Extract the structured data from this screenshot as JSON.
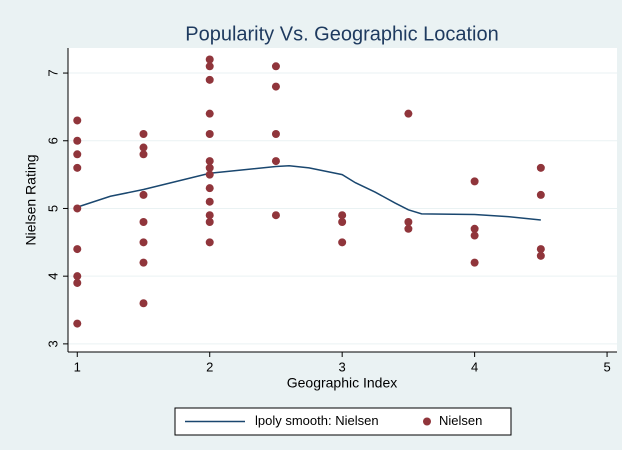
{
  "chart_data": {
    "type": "scatter",
    "title": "Popularity Vs. Geographic Location",
    "x_label": "Geographic Index",
    "y_label": "Nielsen Rating",
    "xlim": [
      0.93,
      5.075
    ],
    "xticks": [
      1,
      2,
      3,
      4,
      5
    ],
    "ylim": [
      2.88,
      7.37
    ],
    "yticks": [
      3,
      4,
      5,
      6,
      7
    ],
    "grid": true,
    "legend": "bottom",
    "series": [
      {
        "name": "lpoly smooth: Nielsen",
        "type": "line",
        "color": "#1a476f",
        "x": [
          1,
          1.25,
          1.5,
          1.75,
          2,
          2.25,
          2.5,
          2.6,
          2.75,
          3,
          3.1,
          3.25,
          3.4,
          3.5,
          3.6,
          4,
          4.25,
          4.5
        ],
        "values": [
          5.02,
          5.18,
          5.28,
          5.4,
          5.52,
          5.57,
          5.62,
          5.63,
          5.6,
          5.5,
          5.38,
          5.24,
          5.08,
          4.98,
          4.92,
          4.91,
          4.88,
          4.83
        ]
      },
      {
        "name": "Nielsen",
        "type": "scatter",
        "color": "#90353b",
        "x": [
          1,
          1,
          1,
          1,
          1,
          1,
          1,
          1,
          1,
          1.5,
          1.5,
          1.5,
          1.5,
          1.5,
          1.5,
          1.5,
          1.5,
          2,
          2,
          2,
          2,
          2,
          2,
          2,
          2,
          2,
          2,
          2,
          2,
          2,
          2.5,
          2.5,
          2.5,
          2.5,
          2.5,
          3,
          3,
          3,
          3.5,
          3.5,
          3.5,
          4,
          4,
          4,
          4,
          4.5,
          4.5,
          4.5,
          4.5
        ],
        "values": [
          6.3,
          6.0,
          5.8,
          5.6,
          5.0,
          4.4,
          4.0,
          3.9,
          3.3,
          6.1,
          5.9,
          5.8,
          5.2,
          4.8,
          4.5,
          4.2,
          3.6,
          7.2,
          7.1,
          6.9,
          6.4,
          6.1,
          5.7,
          5.6,
          5.5,
          5.3,
          5.1,
          4.9,
          4.8,
          4.5,
          7.1,
          6.8,
          6.1,
          5.7,
          4.9,
          4.9,
          4.8,
          4.5,
          6.4,
          4.8,
          4.7,
          5.4,
          4.7,
          4.6,
          4.2,
          5.6,
          5.2,
          4.4,
          4.3
        ]
      }
    ]
  }
}
